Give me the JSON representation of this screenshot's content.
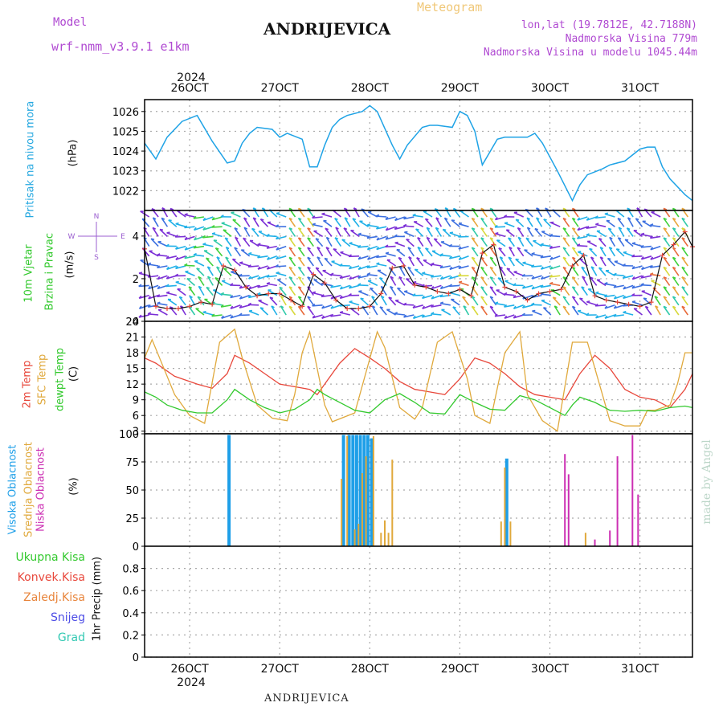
{
  "header": {
    "model_label": "Model",
    "model_name": "wrf-nmm_v3.9.1  e1km",
    "station": "ANDRIJEVICA",
    "product": "Meteogram",
    "lonlat": "lon,lat (19.7812E, 42.7188N)",
    "altitude": "Nadmorska Visina 779m",
    "model_altitude": "Nadmorska Visina u modelu 1045.44m",
    "footer_station": "ANDRIJEVICA",
    "credit": "made by Angel"
  },
  "colors": {
    "pressure": "#1fa3e6",
    "temp2m": "#e8483c",
    "sfc": "#e0a93c",
    "dew": "#33c92e",
    "high": "#1e9fe8",
    "mid": "#e0a93c",
    "low": "#cc2fb3",
    "grid": "#aaaaaa"
  },
  "time_axis": {
    "year": "2024",
    "labels": [
      "26OCT",
      "27OCT",
      "28OCT",
      "29OCT",
      "30OCT",
      "31OCT"
    ],
    "x_hours": [
      12,
      36,
      60,
      84,
      108,
      132
    ],
    "range_hours": [
      0,
      146
    ]
  },
  "panels": {
    "pressure": {
      "label": "Pritisak na nivou mora",
      "unit": "(hPa)"
    },
    "wind": {
      "label1": "10m Vjetar",
      "label2": "Brzina i Pravac",
      "unit": "(m/s)",
      "compass_n": "N",
      "compass_s": "S",
      "compass_w": "W",
      "compass_e": "E"
    },
    "temp": {
      "label1": "2m Temp",
      "label2": "SFC Temp",
      "label3": "dewpt Temp",
      "unit": "(C)"
    },
    "cloud": {
      "label1": "Visoka Oblacnost",
      "label2": "Srednja Oblacnost",
      "label3": "Niska Oblacnost",
      "unit": "(%)"
    },
    "precip": {
      "legend": [
        "Ukupna Kisa",
        "Konvek.Kisa",
        "Zaledj.Kisa",
        "Snijeg",
        "Grad"
      ],
      "legend_colors": [
        "#33c92e",
        "#e8483c",
        "#e8853c",
        "#4d4de6",
        "#33c9b3"
      ],
      "unit": "1hr Precip (mm)"
    }
  },
  "chart_data": [
    {
      "type": "line",
      "title": "Pritisak na nivou mora",
      "ylabel": "(hPa)",
      "ylim": [
        1021.0,
        1026.6
      ],
      "yticks": [
        "1022",
        "1023",
        "1024",
        "1025",
        "1026"
      ],
      "series": [
        {
          "x": [
            0,
            3,
            6,
            10,
            14,
            18,
            22,
            24,
            26,
            28,
            30,
            34,
            36,
            38,
            42,
            44,
            46,
            48,
            50,
            52,
            54,
            58,
            60,
            62,
            66,
            68,
            70,
            74,
            76,
            78,
            82,
            84,
            86,
            88,
            90,
            94,
            96,
            98,
            102,
            104,
            106,
            110,
            114,
            116,
            118,
            122,
            124,
            128,
            132,
            134,
            136,
            138,
            140,
            144,
            146
          ],
          "y": [
            1024.4,
            1023.6,
            1024.7,
            1025.5,
            1025.8,
            1024.5,
            1023.4,
            1023.5,
            1024.4,
            1024.9,
            1025.2,
            1025.1,
            1024.7,
            1024.9,
            1024.6,
            1023.2,
            1023.2,
            1024.3,
            1025.2,
            1025.6,
            1025.8,
            1026.0,
            1026.3,
            1026.0,
            1024.3,
            1023.6,
            1024.3,
            1025.2,
            1025.3,
            1025.3,
            1025.2,
            1026.0,
            1025.8,
            1025.0,
            1023.3,
            1024.6,
            1024.7,
            1024.7,
            1024.7,
            1024.9,
            1024.4,
            1023.0,
            1021.5,
            1022.3,
            1022.8,
            1023.1,
            1023.3,
            1023.5,
            1024.1,
            1024.2,
            1024.2,
            1023.2,
            1022.6,
            1021.8,
            1021.5
          ]
        }
      ]
    },
    {
      "type": "line",
      "title": "10m Vjetar Brzina i Pravac",
      "ylabel": "(m/s)",
      "ylim": [
        0,
        5.2
      ],
      "yticks": [
        "0",
        "2",
        "4"
      ],
      "series": [
        {
          "x": [
            0,
            3,
            6,
            9,
            12,
            15,
            18,
            21,
            24,
            27,
            30,
            33,
            36,
            39,
            42,
            45,
            48,
            51,
            54,
            57,
            60,
            63,
            66,
            69,
            72,
            75,
            78,
            81,
            84,
            87,
            90,
            93,
            96,
            99,
            102,
            105,
            108,
            111,
            114,
            117,
            120,
            123,
            126,
            129,
            132,
            135,
            138,
            141,
            144,
            146
          ],
          "y": [
            3.4,
            0.7,
            0.6,
            0.6,
            0.7,
            0.9,
            0.8,
            2.6,
            2.4,
            1.6,
            1.2,
            1.3,
            1.3,
            1.0,
            0.7,
            2.2,
            1.8,
            1.0,
            0.6,
            0.6,
            0.7,
            1.3,
            2.5,
            2.6,
            1.7,
            1.6,
            1.4,
            1.3,
            1.5,
            1.2,
            3.2,
            3.6,
            1.6,
            1.4,
            1.0,
            1.3,
            1.4,
            1.5,
            2.6,
            3.1,
            1.2,
            1.0,
            0.9,
            0.8,
            0.7,
            0.9,
            3.1,
            3.6,
            4.2,
            3.5
          ]
        }
      ]
    },
    {
      "type": "line",
      "title": "2m Temp / SFC Temp / dewpt Temp",
      "ylabel": "(C)",
      "ylim": [
        2.5,
        24
      ],
      "yticks": [
        "3",
        "6",
        "9",
        "12",
        "15",
        "18",
        "21",
        "24"
      ],
      "series": [
        {
          "name": "2m Temp",
          "x": [
            0,
            3,
            8,
            14,
            18,
            22,
            24,
            28,
            32,
            36,
            40,
            44,
            46,
            48,
            52,
            56,
            60,
            64,
            68,
            72,
            76,
            80,
            84,
            88,
            92,
            96,
            100,
            104,
            108,
            112,
            114,
            116,
            120,
            124,
            128,
            132,
            136,
            140,
            144,
            146
          ],
          "y": [
            17,
            16,
            13.5,
            12,
            11.2,
            14,
            17.5,
            16,
            14,
            12,
            11.5,
            11,
            10,
            12,
            16,
            18.8,
            17,
            15,
            12.5,
            11,
            10.5,
            10,
            13,
            17,
            16,
            14,
            11.5,
            10,
            9.5,
            9,
            11.5,
            14,
            17.5,
            15,
            11,
            9.5,
            9,
            7.5,
            11,
            14
          ]
        },
        {
          "name": "SFC Temp",
          "x": [
            0,
            2,
            8,
            12,
            16,
            20,
            24,
            26,
            30,
            34,
            38,
            40,
            42,
            44,
            48,
            50,
            56,
            62,
            64,
            68,
            72,
            74,
            78,
            82,
            86,
            88,
            92,
            96,
            100,
            102,
            106,
            110,
            114,
            118,
            122,
            124,
            128,
            132,
            134,
            136,
            140,
            142,
            144,
            146
          ],
          "y": [
            17,
            20.5,
            10,
            6,
            4.5,
            20,
            22.5,
            17,
            8,
            5.5,
            5,
            10,
            18,
            22,
            8,
            4.8,
            6.5,
            22,
            19,
            7.5,
            5.3,
            7.5,
            20,
            22,
            13,
            6,
            4.5,
            18,
            22,
            10,
            5,
            3,
            20,
            20,
            10,
            5,
            4,
            4,
            7,
            7,
            8,
            12,
            18,
            18
          ]
        },
        {
          "name": "dewpt Temp",
          "x": [
            0,
            3,
            6,
            10,
            14,
            18,
            22,
            24,
            28,
            32,
            36,
            40,
            44,
            46,
            48,
            52,
            56,
            60,
            64,
            68,
            72,
            76,
            80,
            84,
            88,
            92,
            96,
            100,
            104,
            108,
            112,
            114,
            116,
            120,
            124,
            128,
            132,
            136,
            140,
            144,
            146
          ],
          "y": [
            10.5,
            9.5,
            8,
            7,
            6.5,
            6.5,
            9,
            11,
            9,
            7.5,
            6.5,
            7.2,
            9,
            11,
            10,
            8.5,
            7,
            6.5,
            9,
            10.2,
            8.5,
            6.5,
            6.3,
            10,
            8.5,
            7.2,
            7,
            9.8,
            9,
            7.5,
            6,
            8,
            9.5,
            8.5,
            7,
            6.8,
            7,
            6.8,
            7.5,
            7.8,
            7.5
          ]
        }
      ]
    },
    {
      "type": "bar",
      "title": "Visoka / Srednja / Niska Oblacnost",
      "ylabel": "(%)",
      "ylim": [
        0,
        100
      ],
      "yticks": [
        "0",
        "25",
        "50",
        "75",
        "100"
      ],
      "series": [
        {
          "name": "Visoka Oblacnost",
          "x": [
            22.5,
            53.0,
            54.5,
            55.5,
            56.5,
            57.5,
            58.5,
            59.5,
            60.5,
            96.5
          ],
          "y": [
            99,
            99,
            99,
            99,
            99,
            99,
            99,
            99,
            96,
            78
          ]
        },
        {
          "name": "Srednja Oblacnost",
          "x": [
            52.5,
            54.0,
            56.0,
            57.0,
            58.0,
            59.0,
            61.0,
            63.0,
            64.0,
            65.0,
            66.0,
            95.0,
            96.0,
            97.5,
            117.5
          ],
          "y": [
            60,
            98,
            15,
            20,
            65,
            80,
            98,
            12,
            23,
            12,
            77,
            22,
            70,
            22,
            12
          ]
        },
        {
          "name": "Niska Oblacnost",
          "x": [
            112.0,
            113.0,
            120.0,
            124.0,
            126.0,
            130.0,
            131.5
          ],
          "y": [
            82,
            64,
            6,
            14,
            80,
            99,
            46
          ]
        }
      ]
    },
    {
      "type": "bar",
      "title": "1hr Precip",
      "ylabel": "1hr Precip (mm)",
      "ylim": [
        0,
        1.0
      ],
      "yticks": [
        "0",
        "0.2",
        "0.4",
        "0.6",
        "0.8"
      ],
      "series": [
        {
          "name": "Ukupna Kisa",
          "x": [],
          "y": []
        }
      ]
    }
  ]
}
